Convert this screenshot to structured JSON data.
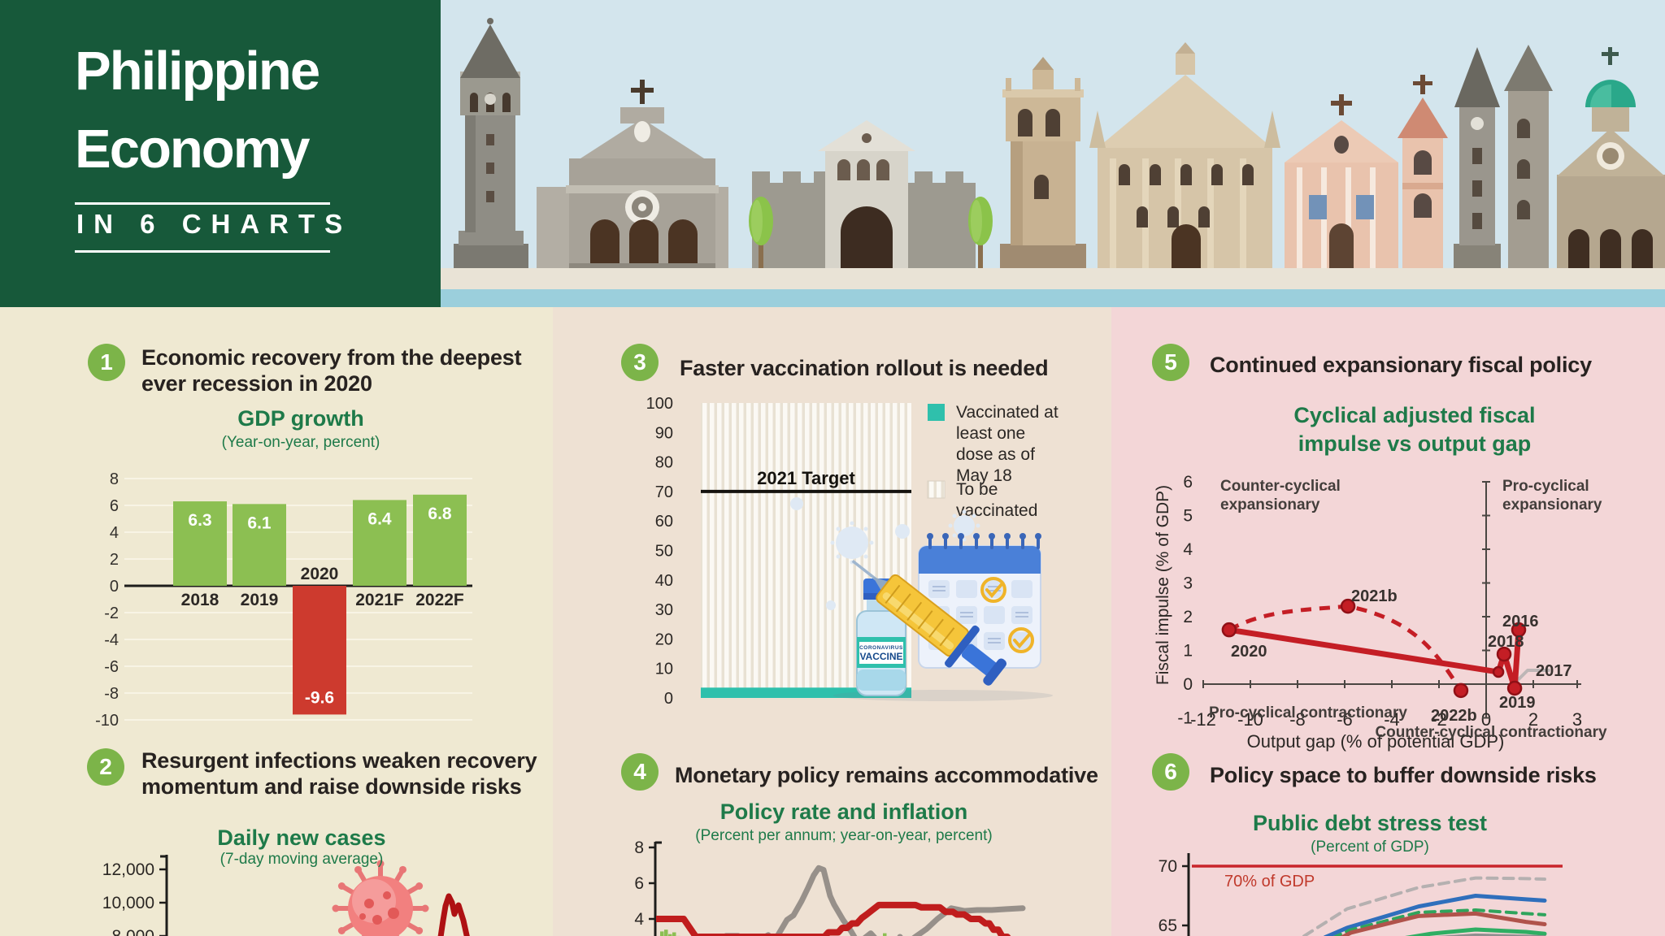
{
  "header": {
    "title_line1": "Philippine",
    "title_line2": "Economy",
    "subtitle": "IN 6 CHARTS"
  },
  "sections": {
    "s1": {
      "badge": "1",
      "heading_line1": "Economic recovery from the deepest",
      "heading_line2": "ever recession in 2020",
      "title": "GDP growth",
      "subtitle": "(Year-on-year, percent)"
    },
    "s2": {
      "badge": "2",
      "heading_line1": "Resurgent infections weaken recovery",
      "heading_line2": "momentum and raise downside risks",
      "title": "Daily new cases",
      "subtitle": "(7-day moving average)"
    },
    "s3": {
      "badge": "3",
      "heading_line1": "Faster vaccination rollout is needed"
    },
    "s4": {
      "badge": "4",
      "heading_line1": "Monetary policy remains accommodative",
      "title": "Policy rate and inflation",
      "subtitle": "(Percent per annum; year-on-year, percent)"
    },
    "s5": {
      "badge": "5",
      "heading_line1": "Continued expansionary fiscal policy",
      "title_line1": "Cyclical adjusted fiscal",
      "title_line2": "impulse vs output gap"
    },
    "s6": {
      "badge": "6",
      "heading_line1": "Policy space to buffer downside risks",
      "title": "Public debt stress test",
      "subtitle": "(Percent of GDP)"
    }
  },
  "colors": {
    "header_green": "#17593a",
    "badge_green": "#7cb449",
    "title_green": "#1e7a49",
    "panel_left": "#efe9d2",
    "panel_mid": "#eee1d3",
    "panel_right": "#f3d6d7",
    "text_dark": "#2b2724",
    "bar_green": "#8cbf52",
    "bar_red": "#cd3a2e",
    "teal": "#2fc0ac",
    "line_red": "#c41e25",
    "policy_red": "#c01d1d",
    "inflation_gray": "#97908a",
    "threshold_red": "#c9252b",
    "sky": "#d3e5ed",
    "water": "#9bcfdc",
    "walkway": "#e9e3d6"
  },
  "chart_data": [
    {
      "id": "gdp-growth",
      "type": "bar",
      "title": "GDP growth",
      "subtitle": "(Year-on-year, percent)",
      "categories": [
        "2018",
        "2019",
        "2020",
        "2021F",
        "2022F"
      ],
      "values": [
        6.3,
        6.1,
        -9.6,
        6.4,
        6.8
      ],
      "bar_labels": [
        "6.3",
        "6.1",
        "-9.6",
        "6.4",
        "6.8"
      ],
      "negative_index": 2,
      "ylim": [
        -10,
        8
      ],
      "yticks": [
        8,
        6,
        4,
        2,
        0,
        -2,
        -4,
        -6,
        -8,
        -10
      ],
      "grid": true
    },
    {
      "id": "daily-new-cases",
      "type": "line",
      "title": "Daily new cases",
      "subtitle": "(7-day moving average)",
      "ytick_labels": [
        "12,000",
        "10,000",
        "8,000"
      ],
      "ylim_visible": [
        8000,
        12000
      ],
      "series": [
        {
          "name": "daily new cases 7-day moving average",
          "color": "red",
          "visible_points": [
            [
              536,
              7500
            ],
            [
              541,
              7610
            ],
            [
              545,
              8930
            ],
            [
              548,
              9800
            ],
            [
              552,
              10390
            ],
            [
              556,
              10000
            ],
            [
              559,
              9320
            ],
            [
              561,
              9610
            ],
            [
              564,
              9850
            ],
            [
              570,
              8930
            ],
            [
              576,
              7610
            ],
            [
              580,
              6600
            ]
          ]
        }
      ],
      "decoration": "coronavirus-icon"
    },
    {
      "id": "vaccination-rollout",
      "type": "stacked-bar",
      "ylim": [
        0,
        100
      ],
      "ytick_step": 10,
      "target": {
        "value": 70,
        "label": "2021 Target"
      },
      "vaccinated_value": 3.5,
      "legend": [
        {
          "swatch": "teal",
          "label_lines": [
            "Vaccinated at",
            "least one",
            "dose as of",
            "May 18"
          ]
        },
        {
          "swatch": "striped",
          "label_lines": [
            "To be",
            "vaccinated"
          ]
        }
      ],
      "icons": {
        "vial_label_small": "CORONAVIRUS",
        "vial_label": "VACCINE"
      }
    },
    {
      "id": "policy-rate-inflation",
      "type": "line",
      "title": "Policy rate and inflation",
      "subtitle": "(Percent per annum; year-on-year, percent)",
      "yticks": [
        8,
        6,
        4
      ],
      "series": [
        {
          "name": "policy rate",
          "color": "red",
          "points": [
            [
              807,
              4
            ],
            [
              841,
              4
            ],
            [
              856,
              3
            ],
            [
              1014,
              3
            ],
            [
              1019,
              3.25
            ],
            [
              1031,
              3.25
            ],
            [
              1036,
              3.5
            ],
            [
              1042,
              3.5
            ],
            [
              1048,
              3.75
            ],
            [
              1054,
              3.75
            ],
            [
              1060,
              4.05
            ],
            [
              1066,
              4.25
            ],
            [
              1073,
              4.5
            ],
            [
              1081,
              4.78
            ],
            [
              1126,
              4.78
            ],
            [
              1133,
              4.65
            ],
            [
              1156,
              4.65
            ],
            [
              1163,
              4.4
            ],
            [
              1172,
              4.4
            ],
            [
              1177,
              4.25
            ],
            [
              1186,
              4.25
            ],
            [
              1194,
              4.0
            ],
            [
              1205,
              4.0
            ],
            [
              1212,
              3.75
            ],
            [
              1217,
              3.75
            ],
            [
              1222,
              3.4
            ],
            [
              1228,
              3.4
            ],
            [
              1233,
              3.0
            ],
            [
              1239,
              3.0
            ],
            [
              1246,
              2.6
            ],
            [
              1256,
              2.2
            ],
            [
              1268,
              2.0
            ]
          ]
        },
        {
          "name": "inflation",
          "color": "gray",
          "points": [
            [
              875,
              2.5
            ],
            [
              893,
              3.05
            ],
            [
              908,
              3.05
            ],
            [
              918,
              2.55
            ],
            [
              926,
              2.35
            ],
            [
              937,
              2.9
            ],
            [
              945,
              3.1
            ],
            [
              951,
              2.85
            ],
            [
              957,
              3.1
            ],
            [
              968,
              3.95
            ],
            [
              976,
              4.2
            ],
            [
              986,
              5.0
            ],
            [
              994,
              5.75
            ],
            [
              1001,
              6.45
            ],
            [
              1007,
              6.85
            ],
            [
              1013,
              6.75
            ],
            [
              1021,
              5.3
            ],
            [
              1026,
              4.8
            ],
            [
              1037,
              3.95
            ],
            [
              1047,
              3.3
            ],
            [
              1056,
              2.6
            ],
            [
              1064,
              2.95
            ],
            [
              1071,
              3.2
            ],
            [
              1077,
              2.9
            ],
            [
              1084,
              2.4
            ],
            [
              1091,
              2.05
            ],
            [
              1103,
              2.65
            ],
            [
              1107,
              3.0
            ],
            [
              1114,
              2.6
            ],
            [
              1126,
              3.0
            ],
            [
              1140,
              3.45
            ],
            [
              1153,
              4.0
            ],
            [
              1163,
              4.35
            ],
            [
              1170,
              4.6
            ],
            [
              1186,
              4.45
            ],
            [
              1202,
              4.5
            ],
            [
              1220,
              4.5
            ],
            [
              1238,
              4.55
            ],
            [
              1258,
              4.6
            ]
          ]
        },
        {
          "name": "monthly bars",
          "color": "green",
          "bars": [
            [
              812,
              3.3
            ],
            [
              817,
              3.4
            ],
            [
              822,
              3.15
            ],
            [
              827,
              3.25
            ],
            [
              832,
              3.05
            ],
            [
              837,
              2.9
            ],
            [
              842,
              2.75
            ],
            [
              1086,
              3.2
            ],
            [
              1091,
              2.95
            ],
            [
              1096,
              2.75
            ],
            [
              1101,
              2.55
            ],
            [
              1106,
              2.35
            ]
          ]
        }
      ]
    },
    {
      "id": "fiscal-impulse-vs-output-gap",
      "type": "scatter",
      "xlabel": "Output gap (% of potential GDP)",
      "ylabel": "Fiscal impulse (% of GDP)",
      "xtick_labels": [
        "-12",
        "-10",
        "-8",
        "-6",
        "-4",
        "-2",
        "0",
        "2",
        "3"
      ],
      "yticks": [
        6,
        5,
        4,
        3,
        2,
        1,
        0,
        -1
      ],
      "points": [
        {
          "label": "2016",
          "x": 1.38,
          "y": 1.61
        },
        {
          "label": "2018",
          "x": 0.76,
          "y": 0.89
        },
        {
          "label": "2019",
          "x": 1.21,
          "y": -0.12
        },
        {
          "label": "2020",
          "x": -10.9,
          "y": 1.61
        },
        {
          "label": "2021b",
          "x": -5.86,
          "y": 2.31
        },
        {
          "label": "2022b",
          "x": -1.07,
          "y": -0.19
        },
        {
          "label": "",
          "x": 0.52,
          "y": 0.36
        }
      ],
      "label_2017": "2017",
      "solid_path": [
        [
          -10.9,
          1.61
        ],
        [
          0.52,
          0.36
        ],
        [
          0.76,
          0.89
        ],
        [
          1.21,
          -0.12
        ],
        [
          1.38,
          1.61
        ]
      ],
      "dashed_path": [
        [
          -10.9,
          1.61
        ],
        [
          -8.6,
          2.2
        ],
        [
          -5.86,
          2.31
        ],
        [
          -3.4,
          1.45
        ],
        [
          -1.07,
          -0.19
        ]
      ],
      "gray_path": [
        [
          1.1,
          -0.05
        ],
        [
          1.76,
          0.41
        ],
        [
          2.65,
          0.41
        ]
      ],
      "quadrant_labels": {
        "top_left": [
          "Counter-cyclical",
          "expansionary"
        ],
        "top_right": [
          "Pro-cyclical",
          "expansionary"
        ],
        "bottom_left": "Pro-cyclical contractionary",
        "bottom_right": "Counter-cyclical contractionary"
      }
    },
    {
      "id": "public-debt-stress-test",
      "type": "line",
      "title": "Public debt stress test",
      "subtitle": "(Percent of GDP)",
      "threshold": {
        "value": 70,
        "label": "70% of GDP"
      },
      "yticks": [
        70,
        65
      ],
      "series": [
        {
          "name": "stress scenario gray dashed",
          "style": "dashed",
          "color": "#b5b0b0",
          "points": [
            [
              1604,
              64.1
            ],
            [
              1657,
              66.4
            ],
            [
              1745,
              68.2
            ],
            [
              1815,
              69.0
            ],
            [
              1877,
              68.95
            ],
            [
              1900,
              68.9
            ]
          ]
        },
        {
          "name": "stress scenario blue",
          "style": "solid",
          "color": "#2f6fbc",
          "points": [
            [
              1630,
              64.0
            ],
            [
              1657,
              64.8
            ],
            [
              1745,
              66.6
            ],
            [
              1815,
              67.5
            ],
            [
              1877,
              67.2
            ],
            [
              1900,
              67.1
            ]
          ]
        },
        {
          "name": "stress scenario green dashed",
          "style": "dashed",
          "color": "#2fa45c",
          "points": [
            [
              1638,
              63.9
            ],
            [
              1660,
              64.6
            ],
            [
              1745,
              66.1
            ],
            [
              1815,
              66.3
            ],
            [
              1877,
              66.0
            ],
            [
              1900,
              65.9
            ]
          ]
        },
        {
          "name": "stress scenario brown",
          "style": "solid",
          "color": "#b0534b",
          "points": [
            [
              1645,
              63.8
            ],
            [
              1662,
              64.4
            ],
            [
              1745,
              65.8
            ],
            [
              1815,
              66.0
            ],
            [
              1877,
              65.3
            ],
            [
              1900,
              65.1
            ]
          ]
        },
        {
          "name": "baseline green",
          "style": "solid",
          "color": "#2fae63",
          "points": [
            [
              1725,
              63.9
            ],
            [
              1760,
              64.3
            ],
            [
              1815,
              64.66
            ],
            [
              1877,
              64.45
            ],
            [
              1900,
              64.3
            ]
          ]
        },
        {
          "name": "scenario gray",
          "style": "solid",
          "color": "#8f8f8f",
          "points": [
            [
              1758,
              63.9
            ],
            [
              1815,
              64.15
            ],
            [
              1877,
              64.05
            ],
            [
              1900,
              64.0
            ]
          ]
        }
      ]
    }
  ]
}
